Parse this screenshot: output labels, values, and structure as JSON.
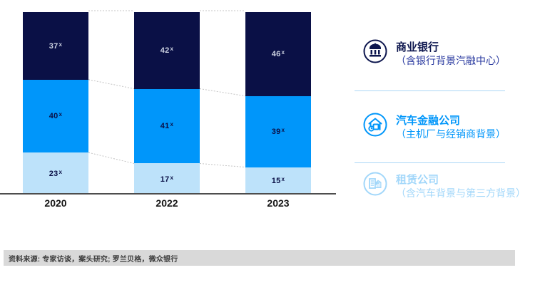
{
  "chart_data": {
    "type": "bar",
    "stacked": true,
    "orientation": "vertical",
    "unit": "x",
    "categories": [
      "2020",
      "2022",
      "2023"
    ],
    "series": [
      {
        "name": "商业银行",
        "color": "#0a1046",
        "values": [
          37,
          42,
          46
        ]
      },
      {
        "name": "汽车金融公司",
        "color": "#0096fa",
        "values": [
          40,
          41,
          39
        ]
      },
      {
        "name": "租赁公司",
        "color": "#bde2fa",
        "values": [
          23,
          17,
          15
        ]
      }
    ],
    "ylim": [
      0,
      100
    ],
    "grid": false,
    "legend_position": "right",
    "connector_lines": "dotted lines join segment boundaries between bars"
  },
  "legend": {
    "items": [
      {
        "title": "商业银行",
        "subtitle": "（含银行背景汽融中心）",
        "color": "#0a1046",
        "icon": "bank-icon"
      },
      {
        "title": "汽车金融公司",
        "subtitle": "（主机厂与经销商背景）",
        "color": "#0096fa",
        "icon": "car-garage-icon"
      },
      {
        "title": "租赁公司",
        "subtitle": "（含汽车背景与第三方背景）",
        "color": "#a2d7fa",
        "icon": "leasing-building-icon"
      }
    ]
  },
  "footer": {
    "source": "资料来源: 专家访谈，案头研究; 罗兰贝格，微众银行"
  }
}
